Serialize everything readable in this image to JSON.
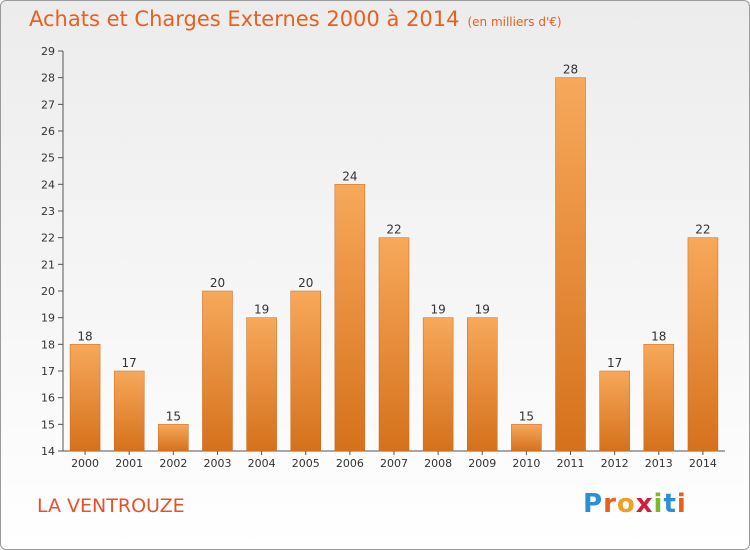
{
  "header": {
    "title": "Achats et Charges Externes 2000 à 2014",
    "unit": "(en milliers d'€)"
  },
  "footer": {
    "commune": "LA VENTROUZE",
    "logo": {
      "letters": [
        "P",
        "r",
        "o",
        "x",
        "i",
        "t",
        "i"
      ],
      "colors": [
        "#2a8fd6",
        "#e8601e",
        "#f0a020",
        "#d21e3c",
        "#7ab82e",
        "#2a8fd6",
        "#e8601e"
      ]
    }
  },
  "colors": {
    "bar_light": "#f7a85a",
    "bar_dark": "#d5711c",
    "title": "#e8601e"
  },
  "chart_data": {
    "type": "bar",
    "categories": [
      "2000",
      "2001",
      "2002",
      "2003",
      "2004",
      "2005",
      "2006",
      "2007",
      "2008",
      "2009",
      "2010",
      "2011",
      "2012",
      "2013",
      "2014"
    ],
    "values": [
      18,
      17,
      15,
      20,
      19,
      20,
      24,
      22,
      19,
      19,
      15,
      28,
      17,
      18,
      22
    ],
    "ylim": [
      14,
      29
    ],
    "yticks": [
      14,
      15,
      16,
      17,
      18,
      19,
      20,
      21,
      22,
      23,
      24,
      25,
      26,
      27,
      28,
      29
    ],
    "grid": false,
    "data_labels": true
  }
}
